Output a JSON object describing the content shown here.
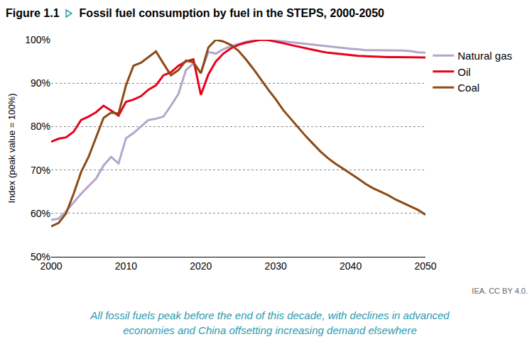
{
  "chart_data": {
    "type": "line",
    "figure_number": "Figure 1.1",
    "title": "Fossil fuel consumption by fuel in the STEPS, 2000-2050",
    "y_label": "Index (peak value = 100%)",
    "source": "IEA. CC BY 4.0.",
    "caption": "All fossil fuels peak before the end of this decade, with declines in advanced economies and China offsetting increasing demand elsewhere",
    "x": [
      2000,
      2001,
      2002,
      2003,
      2004,
      2005,
      2006,
      2007,
      2008,
      2009,
      2010,
      2011,
      2012,
      2013,
      2014,
      2015,
      2016,
      2017,
      2018,
      2019,
      2020,
      2021,
      2022,
      2023,
      2024,
      2025,
      2026,
      2027,
      2028,
      2029,
      2030,
      2031,
      2032,
      2033,
      2034,
      2035,
      2036,
      2037,
      2038,
      2039,
      2040,
      2041,
      2042,
      2043,
      2044,
      2045,
      2046,
      2047,
      2048,
      2049,
      2050
    ],
    "series": [
      {
        "name": "Natural gas",
        "color": "#b4a5cb",
        "values": [
          58.5,
          58.8,
          60.5,
          62.5,
          64.5,
          66.3,
          68.0,
          71.0,
          73.0,
          71.5,
          77.3,
          78.5,
          80.0,
          81.5,
          81.8,
          82.3,
          84.8,
          87.5,
          93.0,
          94.5,
          92.3,
          97.2,
          96.8,
          97.8,
          98.5,
          99.0,
          99.5,
          99.8,
          100,
          100,
          99.8,
          99.6,
          99.4,
          99.2,
          99.0,
          98.8,
          98.6,
          98.4,
          98.2,
          98.0,
          97.9,
          97.8,
          97.6,
          97.6,
          97.6,
          97.6,
          97.6,
          97.5,
          97.4,
          97.1,
          97.0
        ]
      },
      {
        "name": "Oil",
        "color": "#e8001c",
        "values": [
          76.5,
          77.2,
          77.5,
          78.8,
          81.5,
          82.3,
          83.3,
          84.8,
          83.7,
          82.5,
          85.7,
          86.2,
          87.0,
          88.5,
          89.5,
          91.8,
          92.5,
          94.0,
          95.0,
          95.5,
          87.3,
          92.0,
          95.0,
          96.8,
          98.0,
          98.8,
          99.3,
          99.7,
          100,
          99.9,
          99.6,
          99.2,
          98.8,
          98.4,
          98.0,
          97.7,
          97.3,
          97.0,
          96.8,
          96.6,
          96.4,
          96.3,
          96.2,
          96.1,
          96.1,
          96.0,
          96.0,
          96.0,
          96.0,
          95.9,
          95.9
        ]
      },
      {
        "name": "Coal",
        "color": "#8c4a14",
        "values": [
          57.0,
          57.8,
          60.0,
          64.5,
          69.5,
          73.0,
          77.5,
          82.0,
          83.2,
          83.0,
          89.5,
          94.0,
          94.7,
          96.0,
          97.3,
          94.5,
          91.8,
          93.0,
          95.2,
          94.8,
          92.3,
          98.2,
          100,
          99.6,
          98.8,
          97.5,
          95.5,
          93.3,
          90.8,
          88.5,
          86.3,
          83.8,
          81.8,
          79.8,
          77.8,
          76.0,
          74.2,
          72.7,
          71.4,
          70.3,
          69.2,
          68.0,
          66.8,
          65.8,
          65.0,
          64.2,
          63.2,
          62.4,
          61.7,
          60.8,
          59.7
        ]
      }
    ],
    "xlim": [
      2000,
      2050
    ],
    "xticks": [
      2000,
      2010,
      2020,
      2030,
      2040,
      2050
    ],
    "ylim": [
      50,
      100
    ],
    "yticks": [
      {
        "value": 50,
        "label": "50%"
      },
      {
        "value": 60,
        "label": "60%"
      },
      {
        "value": 70,
        "label": "70%"
      },
      {
        "value": 80,
        "label": "80%"
      },
      {
        "value": 90,
        "label": "90%"
      },
      {
        "value": 100,
        "label": "100%"
      }
    ],
    "grid": true,
    "legend": "right"
  }
}
